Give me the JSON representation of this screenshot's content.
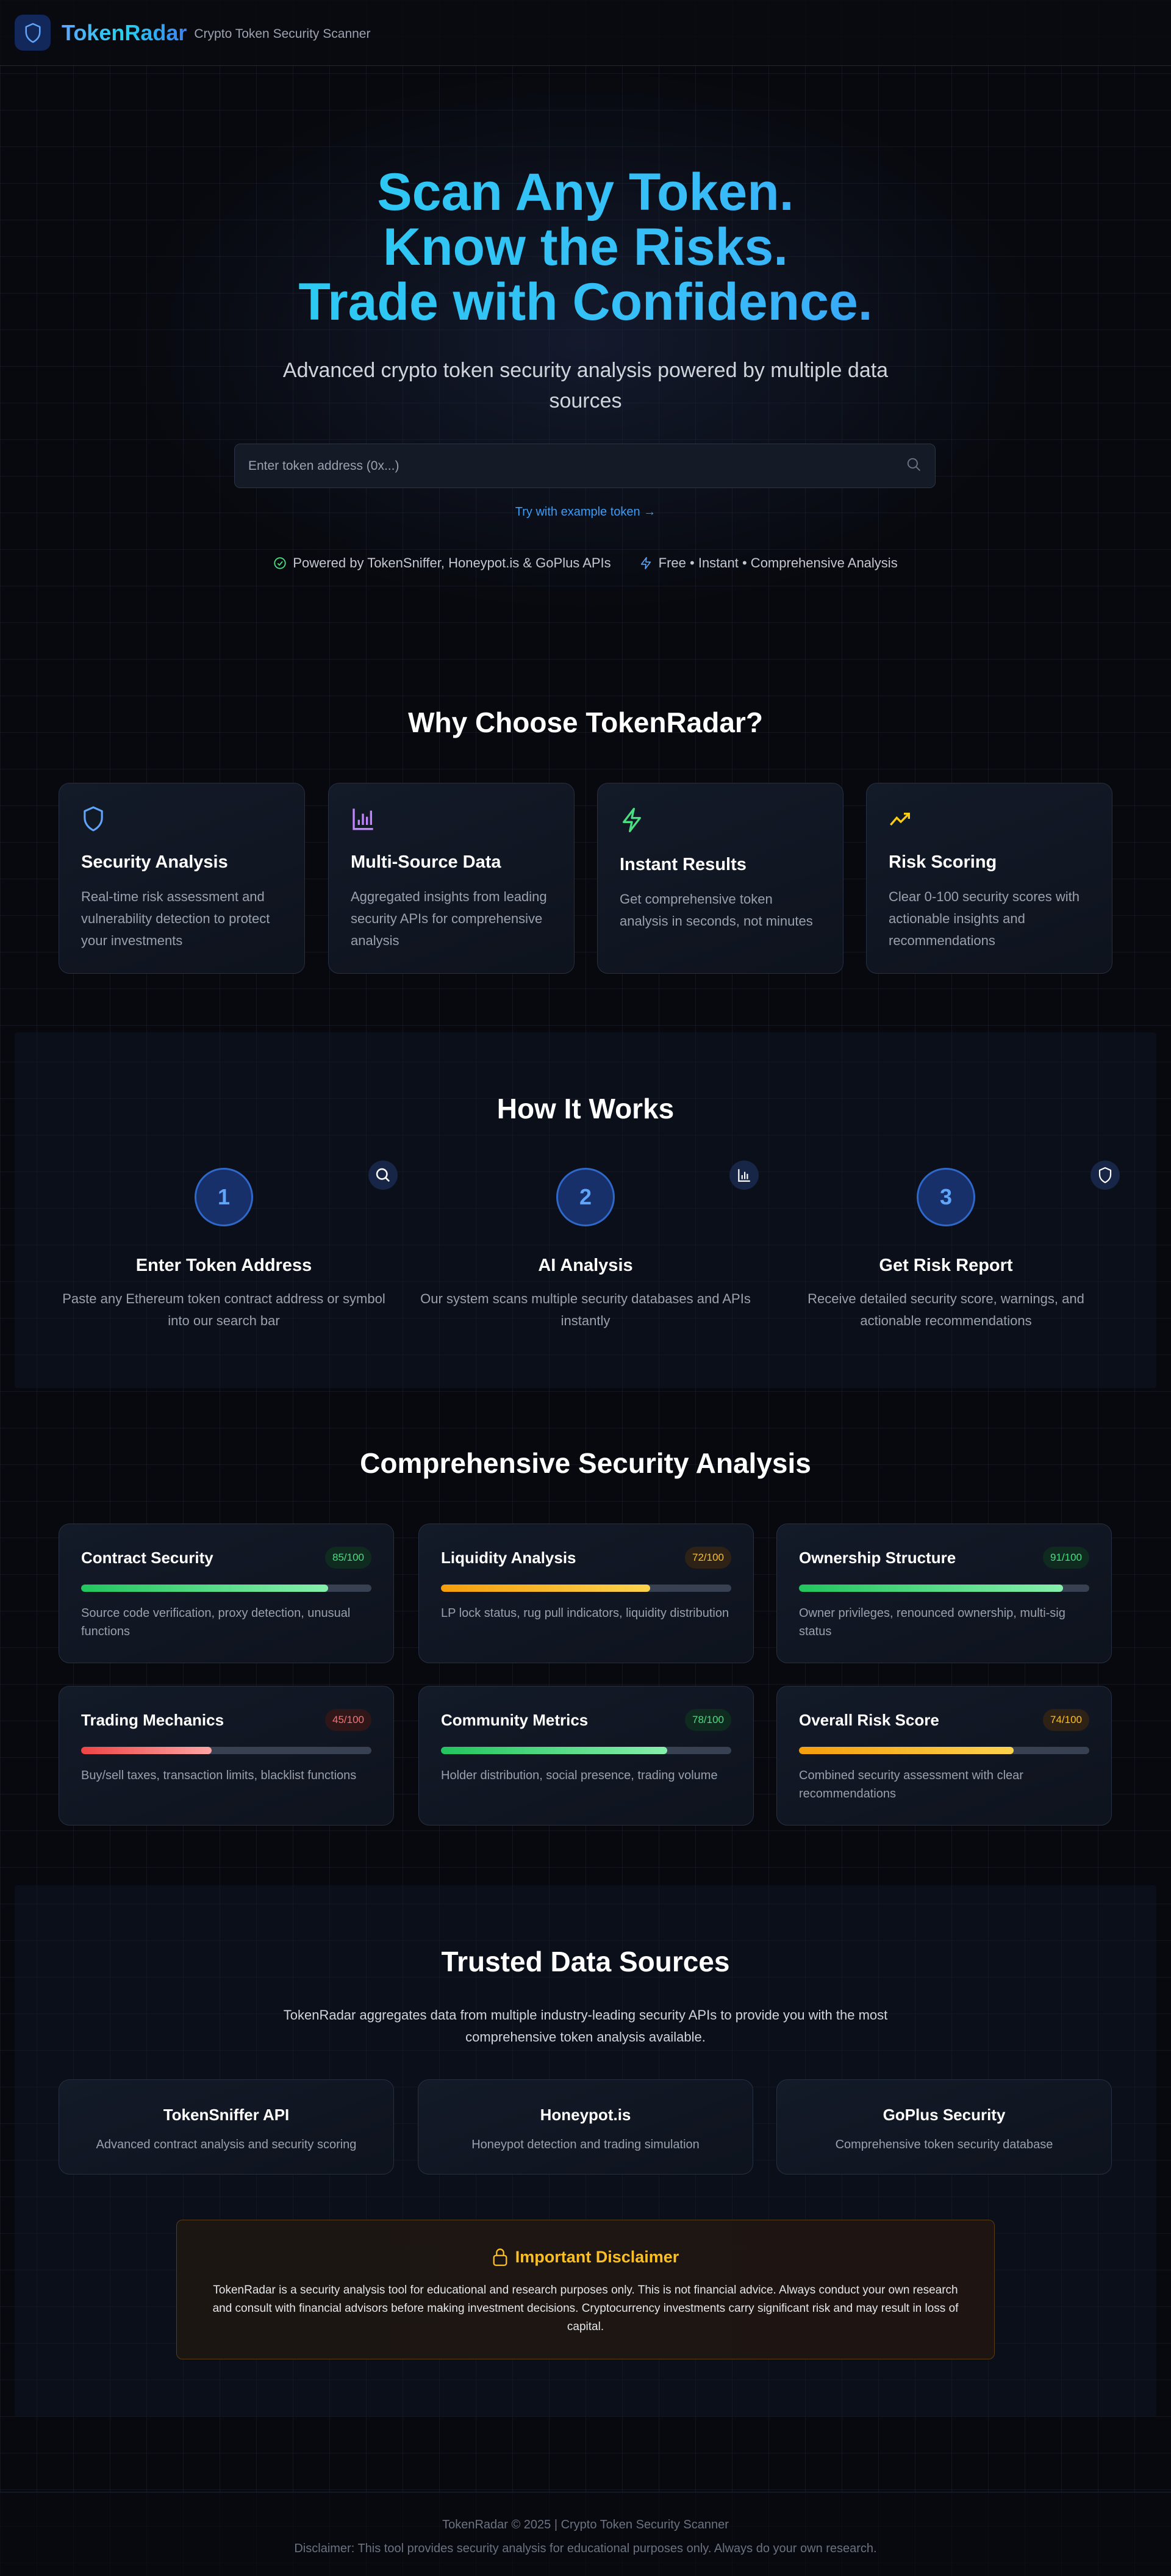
{
  "header": {
    "brand": "TokenRadar",
    "tagline": "Crypto Token Security Scanner"
  },
  "hero": {
    "title_lines": [
      "Scan Any Token.",
      "Know the Risks.",
      "Trade with Confidence."
    ],
    "subtitle": "Advanced crypto token security analysis powered by multiple data sources",
    "search_placeholder": "Enter token address (0x...)",
    "try_example": "Try with example token →",
    "badges": [
      "Powered by TokenSniffer, Honeypot.is & GoPlus APIs",
      "Free • Instant • Comprehensive Analysis"
    ]
  },
  "features": {
    "heading": "Why Choose TokenRadar?",
    "items": [
      {
        "title": "Security Analysis",
        "desc": "Real-time risk assessment and vulnerability detection to protect your investments",
        "icon": "shield-icon",
        "color": "#60a5fa"
      },
      {
        "title": "Multi-Source Data",
        "desc": "Aggregated insights from leading security APIs for comprehensive analysis",
        "icon": "bar-chart-icon",
        "color": "#c084fc"
      },
      {
        "title": "Instant Results",
        "desc": "Get comprehensive token analysis in seconds, not minutes",
        "icon": "lightning-icon",
        "color": "#4ade80"
      },
      {
        "title": "Risk Scoring",
        "desc": "Clear 0-100 security scores with actionable insights and recommendations",
        "icon": "trending-up-icon",
        "color": "#facc15"
      }
    ]
  },
  "how": {
    "heading": "How It Works",
    "steps": [
      {
        "num": "1",
        "title": "Enter Token Address",
        "desc": "Paste any Ethereum token contract address or symbol into our search bar",
        "icon": "search-icon"
      },
      {
        "num": "2",
        "title": "AI Analysis",
        "desc": "Our system scans multiple security databases and APIs instantly",
        "icon": "bar-chart-icon"
      },
      {
        "num": "3",
        "title": "Get Risk Report",
        "desc": "Receive detailed security score, warnings, and actionable recommendations",
        "icon": "shield-icon"
      }
    ]
  },
  "analysis": {
    "heading": "Comprehensive Security Analysis",
    "items": [
      {
        "title": "Contract Security",
        "score": 85,
        "score_label": "85/100",
        "desc": "Source code verification, proxy detection, unusual functions",
        "level": "good"
      },
      {
        "title": "Liquidity Analysis",
        "score": 72,
        "score_label": "72/100",
        "desc": "LP lock status, rug pull indicators, liquidity distribution",
        "level": "medium"
      },
      {
        "title": "Ownership Structure",
        "score": 91,
        "score_label": "91/100",
        "desc": "Owner privileges, renounced ownership, multi-sig status",
        "level": "good"
      },
      {
        "title": "Trading Mechanics",
        "score": 45,
        "score_label": "45/100",
        "desc": "Buy/sell taxes, transaction limits, blacklist functions",
        "level": "bad"
      },
      {
        "title": "Community Metrics",
        "score": 78,
        "score_label": "78/100",
        "desc": "Holder distribution, social presence, trading volume",
        "level": "good"
      },
      {
        "title": "Overall Risk Score",
        "score": 74,
        "score_label": "74/100",
        "desc": "Combined security assessment with clear recommendations",
        "level": "medium"
      }
    ],
    "colors": {
      "good": {
        "from": "#22c55e",
        "to": "#86efac",
        "text": "#4ade80",
        "bg": "#0f2a1e"
      },
      "medium": {
        "from": "#f59e0b",
        "to": "#fcd34d",
        "text": "#fbbf24",
        "bg": "#2e2116"
      },
      "bad": {
        "from": "#ef4444",
        "to": "#fca5a5",
        "text": "#f87171",
        "bg": "#2e1619"
      }
    }
  },
  "sources": {
    "heading": "Trusted Data Sources",
    "intro": "TokenRadar aggregates data from multiple industry-leading security APIs to provide you with the most comprehensive token analysis available.",
    "items": [
      {
        "title": "TokenSniffer API",
        "desc": "Advanced contract analysis and security scoring"
      },
      {
        "title": "Honeypot.is",
        "desc": "Honeypot detection and trading simulation"
      },
      {
        "title": "GoPlus Security",
        "desc": "Comprehensive token security database"
      }
    ]
  },
  "disclaimer": {
    "title": "Important Disclaimer",
    "text": "TokenRadar is a security analysis tool for educational and research purposes only. This is not financial advice. Always conduct your own research and consult with financial advisors before making investment decisions. Cryptocurrency investments carry significant risk and may result in loss of capital."
  },
  "footer": {
    "line1": "TokenRadar © 2025 | Crypto Token Security Scanner",
    "line2": "Disclaimer: This tool provides security analysis for educational purposes only. Always do your own research."
  }
}
